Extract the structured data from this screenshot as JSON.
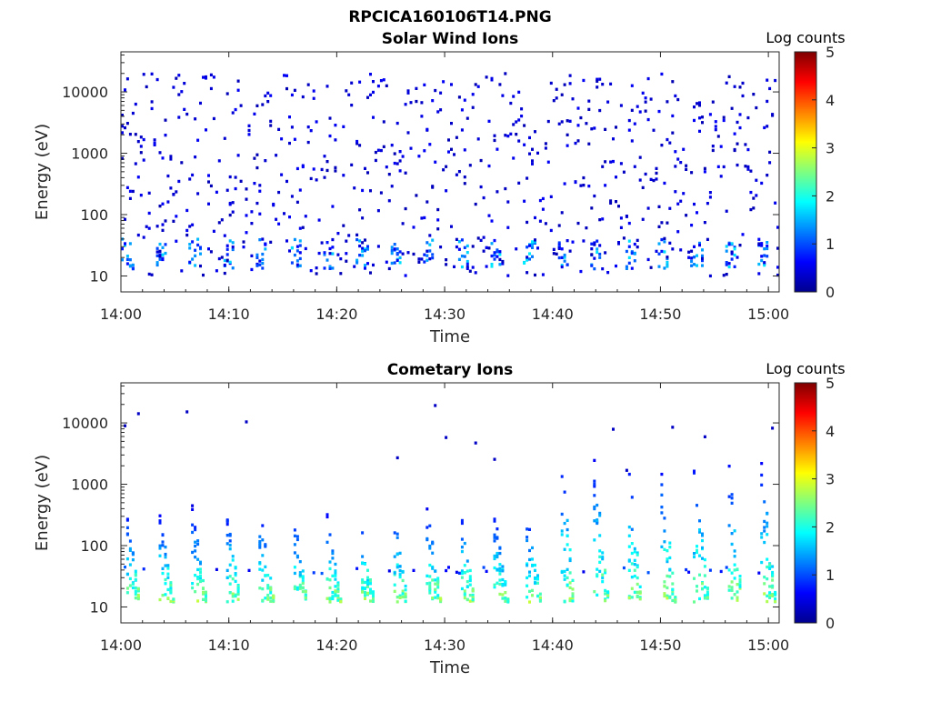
{
  "figure": {
    "title": "RPCICA160106T14.PNG"
  },
  "chart_data": [
    {
      "type": "heatmap",
      "title": "Solar Wind Ions",
      "xlabel": "Time",
      "ylabel": "Energy (eV)",
      "x_range": [
        "14:00",
        "15:01"
      ],
      "y_range": [
        5.5,
        45000
      ],
      "y_scale": "log",
      "x_ticks": [
        "14:00",
        "14:10",
        "14:20",
        "14:30",
        "14:40",
        "14:50",
        "15:00"
      ],
      "y_ticks": [
        "10",
        "100",
        "1000",
        "10000"
      ],
      "colorbar": {
        "label": "Log counts",
        "range": [
          0,
          5
        ],
        "ticks": [
          "0",
          "1",
          "2",
          "3",
          "4",
          "5"
        ]
      },
      "grid": false,
      "description_values": {
        "low_energy_band_eV": [
          13,
          40
        ],
        "periodic_bursts_every_min": 3.1,
        "typical_log_counts_low_band": [
          0.5,
          1.8
        ],
        "sparse_high_energy_log_counts": [
          0.2,
          0.6
        ]
      }
    },
    {
      "type": "heatmap",
      "title": "Cometary Ions",
      "xlabel": "Time",
      "ylabel": "Energy (eV)",
      "x_range": [
        "14:00",
        "15:01"
      ],
      "y_range": [
        5.5,
        45000
      ],
      "y_scale": "log",
      "x_ticks": [
        "14:00",
        "14:10",
        "14:20",
        "14:30",
        "14:40",
        "14:50",
        "15:00"
      ],
      "y_ticks": [
        "10",
        "100",
        "1000",
        "10000"
      ],
      "colorbar": {
        "label": "Log counts",
        "range": [
          0,
          5
        ],
        "ticks": [
          "0",
          "1",
          "2",
          "3",
          "4",
          "5"
        ]
      },
      "grid": false,
      "description_values": {
        "burst_period_min": 3.1,
        "burst_energy_range_eV": [
          12,
          500
        ],
        "peak_log_counts": 2.9,
        "late_bursts_max_energy_eV": 4000
      }
    }
  ]
}
